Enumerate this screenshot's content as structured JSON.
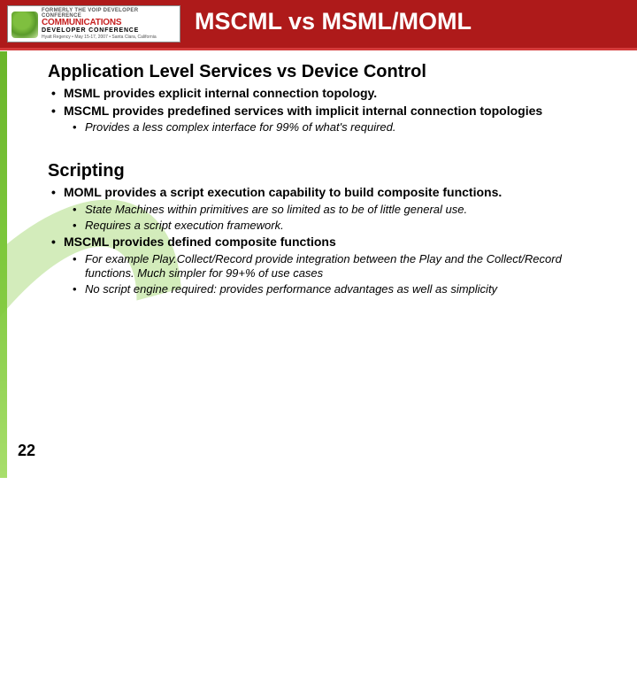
{
  "colors": {
    "header_bg": "#ae1a1a",
    "stripe_bg": "#d43a3a",
    "green_band": "#7fc93e",
    "text": "#000000",
    "title_text": "#ffffff"
  },
  "logo": {
    "line1": "FORMERLY THE VOIP DEVELOPER CONFERENCE",
    "line2": "COMMUNICATIONS",
    "line3": "DEVELOPER CONFERENCE",
    "line4": "Hyatt Regency • May 15-17, 2007 • Santa Clara, California"
  },
  "title": "MSCML vs MSML/MOML",
  "page_number": "22",
  "sections": [
    {
      "heading": "Application Level Services vs Device Control",
      "bullets": [
        {
          "text": "MSML provides explicit internal connection topology.",
          "subs": []
        },
        {
          "text": "MSCML provides predefined services with implicit internal connection topologies",
          "subs": [
            "Provides a less complex interface for 99% of what's required."
          ]
        }
      ]
    },
    {
      "heading": "Scripting",
      "bullets": [
        {
          "text": "MOML provides a script execution capability to build composite functions.",
          "subs": [
            "State Machines within primitives are so limited as to be of little general use.",
            "Requires a script execution framework."
          ]
        },
        {
          "text": "MSCML provides defined composite functions",
          "subs": [
            "For example Play.Collect/Record provide integration between the Play and the Collect/Record functions.  Much simpler for 99+% of use cases",
            "No script engine required: provides performance advantages as well as simplicity"
          ]
        }
      ]
    }
  ]
}
